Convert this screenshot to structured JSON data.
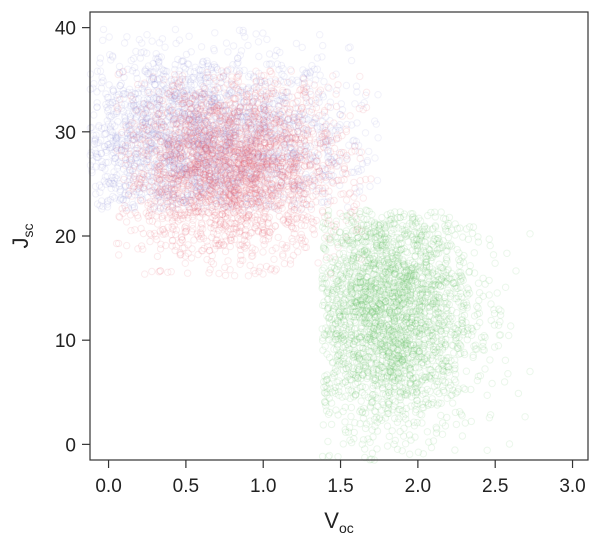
{
  "chart_data": {
    "type": "scatter",
    "title": "",
    "xlabel": "V",
    "xlabel_subscript": "oc",
    "ylabel": "J",
    "ylabel_subscript": "sc",
    "xlim": [
      -0.12,
      3.1
    ],
    "ylim": [
      -1.5,
      41.5
    ],
    "xticks": [
      "0.0",
      "0.5",
      "1.0",
      "1.5",
      "2.0",
      "2.5",
      "3.0"
    ],
    "xtick_values": [
      0.0,
      0.5,
      1.0,
      1.5,
      2.0,
      2.5,
      3.0
    ],
    "yticks": [
      "0",
      "10",
      "20",
      "30",
      "40"
    ],
    "ytick_values": [
      0,
      10,
      20,
      30,
      40
    ],
    "grid": false,
    "marker": "open circle",
    "series": [
      {
        "color": "#8a8fd6",
        "region": {
          "x": [
            -0.12,
            1.75
          ],
          "y": [
            22.5,
            40
          ]
        },
        "center": {
          "x": 0.55,
          "y": 29
        },
        "spread": {
          "x": 0.5,
          "y": 4.5
        },
        "rule": "y >= 22.5"
      },
      {
        "color": "#e85a6a",
        "region": {
          "x": [
            0.05,
            1.7
          ],
          "y": [
            16,
            36
          ]
        },
        "center": {
          "x": 0.8,
          "y": 26.5
        },
        "spread": {
          "x": 0.35,
          "y": 4.2
        }
      },
      {
        "color": "#5cbf5c",
        "region": {
          "x": [
            1.38,
            2.9
          ],
          "y": [
            -1.5,
            22.5
          ]
        },
        "center": {
          "x": 1.8,
          "y": 13
        },
        "spread": {
          "x": 0.28,
          "y": 6
        },
        "rule": "x >= 1.38 and y <= 22.5"
      }
    ]
  }
}
